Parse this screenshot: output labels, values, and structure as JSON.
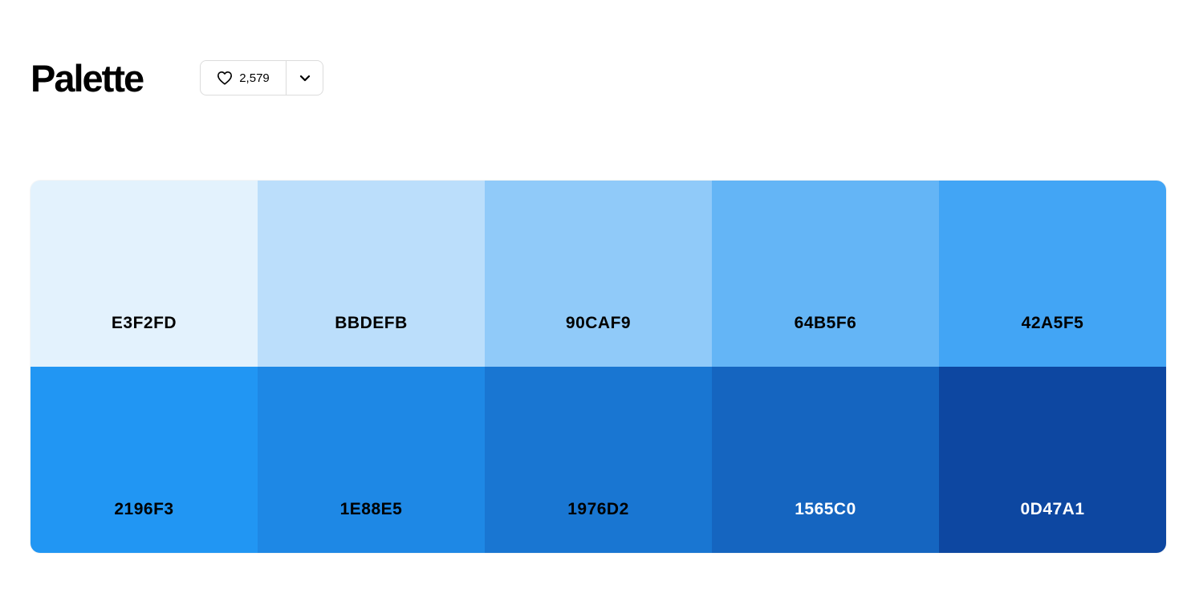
{
  "header": {
    "title": "Palette",
    "like_count": "2,579"
  },
  "icons": {
    "like": "heart-icon",
    "dropdown": "chevron-down-icon"
  },
  "palette": {
    "swatches": [
      {
        "code": "E3F2FD",
        "color": "#E3F2FD",
        "text_color": "#000000"
      },
      {
        "code": "BBDEFB",
        "color": "#BBDEFB",
        "text_color": "#000000"
      },
      {
        "code": "90CAF9",
        "color": "#90CAF9",
        "text_color": "#000000"
      },
      {
        "code": "64B5F6",
        "color": "#64B5F6",
        "text_color": "#000000"
      },
      {
        "code": "42A5F5",
        "color": "#42A5F5",
        "text_color": "#000000"
      },
      {
        "code": "2196F3",
        "color": "#2196F3",
        "text_color": "#000000"
      },
      {
        "code": "1E88E5",
        "color": "#1E88E5",
        "text_color": "#000000"
      },
      {
        "code": "1976D2",
        "color": "#1976D2",
        "text_color": "#000000"
      },
      {
        "code": "1565C0",
        "color": "#1565C0",
        "text_color": "#FFFFFF"
      },
      {
        "code": "0D47A1",
        "color": "#0D47A1",
        "text_color": "#FFFFFF"
      }
    ]
  }
}
